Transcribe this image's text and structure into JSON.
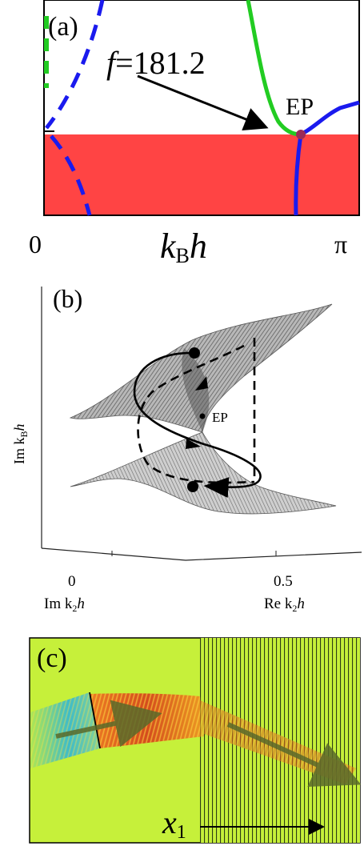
{
  "panel_a": {
    "label": "(a)",
    "annotation": "f=181.2",
    "annotation_f": "f",
    "annotation_value": "=181.2",
    "ep_label": "EP",
    "x_tick_left": "0",
    "x_tick_right": "π",
    "x_axis_label": "k",
    "x_axis_label_sub": "B",
    "x_axis_label_tail": "h",
    "colors": {
      "band": "#ff4444",
      "branch_blue": "#1a1aee",
      "branch_green": "#22cc22",
      "ep_point": "#9a2a58"
    }
  },
  "panel_b": {
    "label": "(b)",
    "ep_label": "EP",
    "y_axis_label": "Im k",
    "y_axis_label_sub": "B",
    "y_axis_label_tail": "h",
    "x_tick_0": "0",
    "x_tick_05": "0.5",
    "x_axis_left_label": "Im k",
    "x_axis_left_label_sub": "2",
    "x_axis_left_label_tail": "h",
    "x_axis_right_label": "Re k",
    "x_axis_right_label_sub": "2",
    "x_axis_right_label_tail": "h",
    "colors": {
      "surface": "#8a8a8a",
      "path": "#000000"
    }
  },
  "panel_c": {
    "label": "(c)",
    "x_label": "x",
    "x_label_sub": "1",
    "colors": {
      "background": "#c6f03a",
      "beam_hot": "#d63a1a",
      "beam_cold": "#2fb6d8",
      "arrow": "#5a6a2a"
    }
  }
}
